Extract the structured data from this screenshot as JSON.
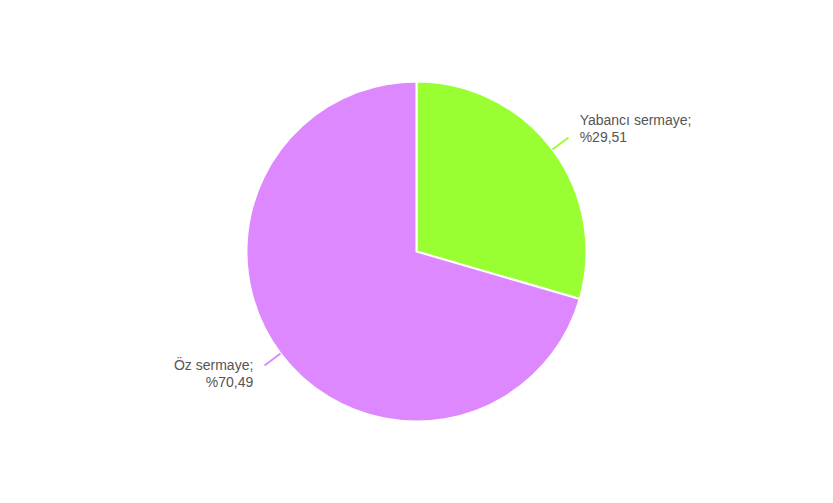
{
  "chart_data": {
    "type": "pie",
    "categories": [
      "Yabancı sermaye;",
      "Öz sermaye;"
    ],
    "values": [
      29.51,
      70.49
    ],
    "value_labels": [
      "%29,51",
      "%70,49"
    ],
    "colors": [
      "#99ff33",
      "#dd88ff"
    ],
    "data_labels": true
  }
}
